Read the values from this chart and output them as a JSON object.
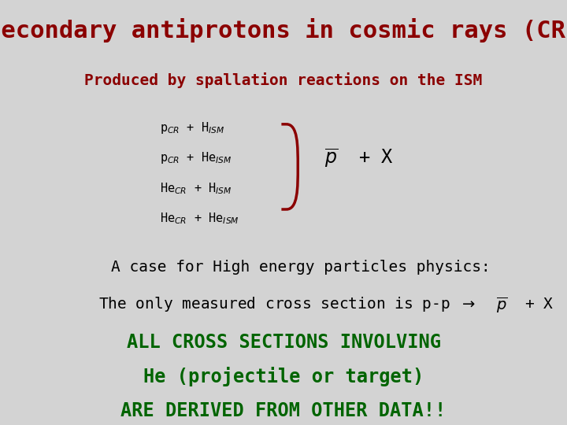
{
  "title": "Secondary antiprotons in cosmic rays (CR)",
  "title_color": "#8B0000",
  "subtitle": "Produced by spallation reactions on the ISM",
  "subtitle_color": "#8B0000",
  "reactions": [
    "p$_{CR}$ + H$_{ISM}$",
    "p$_{CR}$ + He$_{ISM}$",
    "He$_{CR}$ + H$_{ISM}$",
    "He$_{CR}$ + He$_{ISM}$"
  ],
  "reaction_color": "#000000",
  "bracket_color": "#8B0000",
  "case_text": "A case for High energy particles physics:",
  "case_color": "#000000",
  "cross_section_color": "#000000",
  "bottom_lines": [
    "ALL CROSS SECTIONS INVOLVING",
    "He (projectile or target)",
    "ARE DERIVED FROM OTHER DATA!!"
  ],
  "bottom_color": "#006400",
  "background_color": "#d3d3d3",
  "font_family": "monospace"
}
